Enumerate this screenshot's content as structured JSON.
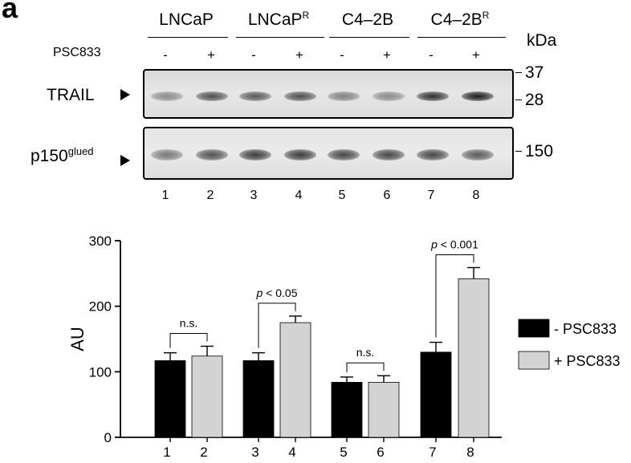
{
  "panel_letter": "a",
  "header": {
    "cell_lines": [
      {
        "name": "LNCaP",
        "sup": ""
      },
      {
        "name": "LNCaP",
        "sup": "R"
      },
      {
        "name": "C4–2B",
        "sup": ""
      },
      {
        "name": "C4–2B",
        "sup": "R"
      }
    ],
    "treatment_label": "PSC833",
    "treatment_signs": [
      "-",
      "+",
      "-",
      "+",
      "-",
      "+",
      "-",
      "+"
    ],
    "kda_label": "kDa"
  },
  "blots": {
    "trail": {
      "label": "TRAIL",
      "sup": ""
    },
    "p150": {
      "label": "p150",
      "sup": "glued"
    },
    "mw_markers": [
      "37",
      "28",
      "150"
    ],
    "trail_band_intensity": [
      0.45,
      0.75,
      0.7,
      0.75,
      0.5,
      0.45,
      0.9,
      1.0
    ],
    "p150_band_intensity": [
      0.55,
      0.75,
      0.85,
      0.85,
      0.8,
      0.8,
      0.8,
      0.7
    ]
  },
  "lane_numbers": [
    "1",
    "2",
    "3",
    "4",
    "5",
    "6",
    "7",
    "8"
  ],
  "chart_data": {
    "type": "bar",
    "categories": [
      "1",
      "2",
      "3",
      "4",
      "5",
      "6",
      "7",
      "8"
    ],
    "values": [
      117,
      124,
      117,
      175,
      84,
      84,
      130,
      242
    ],
    "errors": [
      12,
      15,
      12,
      10,
      8,
      10,
      15,
      17
    ],
    "bar_colors": [
      "#000000",
      "#d3d3d3",
      "#000000",
      "#d3d3d3",
      "#000000",
      "#d3d3d3",
      "#000000",
      "#d3d3d3"
    ],
    "ylabel": "AU",
    "ylim": [
      0,
      300
    ],
    "yticks": [
      0,
      100,
      200,
      300
    ],
    "ytick_labels": [
      "0",
      "100",
      "200",
      "300"
    ],
    "legend_position": "right",
    "legend": [
      {
        "label": "- PSC833",
        "color": "#000000"
      },
      {
        "label": "+ PSC833",
        "color": "#d3d3d3"
      }
    ],
    "annotations": [
      {
        "pair": [
          1,
          2
        ],
        "text": "n.s.",
        "italic_p": false
      },
      {
        "pair": [
          3,
          4
        ],
        "text": "p < 0.05",
        "italic_p": true
      },
      {
        "pair": [
          5,
          6
        ],
        "text": "n.s.",
        "italic_p": false
      },
      {
        "pair": [
          7,
          8
        ],
        "text": "p < 0.001",
        "italic_p": true
      }
    ]
  }
}
